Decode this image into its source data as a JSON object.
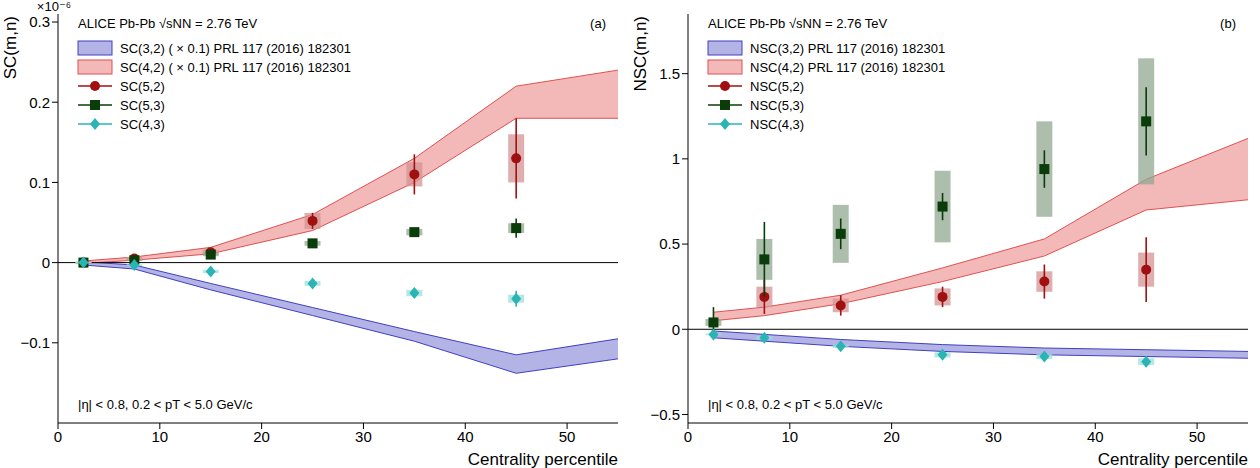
{
  "chart_data": [
    {
      "type": "scatter",
      "title": "ALICE Pb-Pb √sNN = 2.76 TeV",
      "panel_label": "(a)",
      "subtitle": "|η| < 0.8, 0.2 < pT < 5.0 GeV/c",
      "x_label": "Centrality percentile",
      "y_label": "SC(m,n)",
      "y_multiplier": "×10⁻⁶",
      "xlim": [
        0,
        55
      ],
      "xticks": [
        0,
        10,
        20,
        30,
        40,
        50
      ],
      "ylim": [
        -0.2,
        0.31
      ],
      "yticks": [
        -0.1,
        0,
        0.1,
        0.2,
        0.3
      ],
      "hlines": [
        0
      ],
      "grid": false,
      "legend": "top-left",
      "series": [
        {
          "name": "SC(3,2) ( × 0.1) PRL 117 (2016) 182301",
          "type": "band",
          "color": "#4040c0",
          "x": [
            2.5,
            7.5,
            15,
            25,
            35,
            45,
            55
          ],
          "low": [
            -0.003,
            -0.008,
            -0.034,
            -0.066,
            -0.098,
            -0.138,
            -0.12
          ],
          "high": [
            0.001,
            -0.003,
            -0.026,
            -0.056,
            -0.086,
            -0.115,
            -0.095
          ]
        },
        {
          "name": "SC(4,2) ( × 0.1) PRL 117 (2016) 182301",
          "type": "band",
          "color": "#e05050",
          "x": [
            2.5,
            7.5,
            15,
            25,
            35,
            45,
            55
          ],
          "low": [
            -0.001,
            0.003,
            0.011,
            0.04,
            0.1,
            0.18,
            0.18
          ],
          "high": [
            0.002,
            0.007,
            0.019,
            0.06,
            0.13,
            0.22,
            0.24
          ]
        },
        {
          "name": "SC(5,2)",
          "type": "scatter",
          "marker": "circle",
          "color": "#a01010",
          "x": [
            2.5,
            7.5,
            15,
            25,
            35,
            45
          ],
          "values": [
            0,
            0.005,
            0.013,
            0.052,
            0.11,
            0.13
          ],
          "stat_errors": [
            0.001,
            0.002,
            0.004,
            0.01,
            0.025,
            0.05
          ],
          "syst_errors": [
            0.001,
            0.002,
            0.003,
            0.01,
            0.015,
            0.03
          ]
        },
        {
          "name": "SC(5,3)",
          "type": "scatter",
          "marker": "square",
          "color": "#0a3d0a",
          "x": [
            2.5,
            7.5,
            15,
            25,
            35,
            45
          ],
          "values": [
            0,
            0.003,
            0.01,
            0.024,
            0.038,
            0.043
          ],
          "stat_errors": [
            0.001,
            0.002,
            0.003,
            0.004,
            0.005,
            0.012
          ],
          "syst_errors": [
            0.001,
            0.001,
            0.002,
            0.003,
            0.004,
            0.006
          ]
        },
        {
          "name": "SC(4,3)",
          "type": "scatter",
          "marker": "diamond",
          "color": "#2ab5b5",
          "x": [
            2.5,
            7.5,
            15,
            25,
            35,
            45
          ],
          "values": [
            0,
            -0.003,
            -0.011,
            -0.026,
            -0.038,
            -0.045
          ],
          "stat_errors": [
            0.001,
            0.002,
            0.003,
            0.004,
            0.006,
            0.01
          ],
          "syst_errors": [
            0.001,
            0.001,
            0.002,
            0.003,
            0.004,
            0.005
          ]
        }
      ]
    },
    {
      "type": "scatter",
      "title": "ALICE Pb-Pb √sNN = 2.76 TeV",
      "panel_label": "(b)",
      "subtitle": "|η| < 0.8, 0.2 < pT < 5.0 GeV/c",
      "x_label": "Centrality percentile",
      "y_label": "NSC(m,n)",
      "xlim": [
        0,
        55
      ],
      "xticks": [
        0,
        10,
        20,
        30,
        40,
        50
      ],
      "ylim": [
        -0.55,
        1.85
      ],
      "yticks": [
        -0.5,
        0,
        0.5,
        1,
        1.5
      ],
      "hlines": [
        0
      ],
      "grid": false,
      "legend": "top-left",
      "series": [
        {
          "name": "NSC(3,2) PRL 117 (2016) 182301",
          "type": "band",
          "color": "#4040c0",
          "x": [
            2.5,
            7.5,
            15,
            25,
            35,
            45,
            55
          ],
          "low": [
            -0.05,
            -0.07,
            -0.1,
            -0.13,
            -0.15,
            -0.16,
            -0.17
          ],
          "high": [
            -0.01,
            -0.03,
            -0.06,
            -0.09,
            -0.11,
            -0.12,
            -0.13
          ]
        },
        {
          "name": "NSC(4,2) PRL 117 (2016) 182301",
          "type": "band",
          "color": "#e05050",
          "x": [
            2.5,
            7.5,
            15,
            25,
            35,
            45,
            55
          ],
          "low": [
            0.05,
            0.08,
            0.15,
            0.28,
            0.43,
            0.7,
            0.76
          ],
          "high": [
            0.1,
            0.13,
            0.2,
            0.36,
            0.53,
            0.88,
            1.12
          ]
        },
        {
          "name": "NSC(5,2)",
          "type": "scatter",
          "marker": "circle",
          "color": "#a01010",
          "x": [
            7.5,
            15,
            25,
            35,
            45
          ],
          "values": [
            0.19,
            0.14,
            0.19,
            0.28,
            0.35
          ],
          "stat_errors": [
            0.1,
            0.06,
            0.06,
            0.1,
            0.19
          ],
          "syst_errors": [
            0.06,
            0.04,
            0.05,
            0.06,
            0.1
          ]
        },
        {
          "name": "NSC(5,3)",
          "type": "scatter",
          "marker": "square",
          "color": "#0a3d0a",
          "x": [
            2.5,
            7.5,
            15,
            25,
            35,
            45
          ],
          "values": [
            0.04,
            0.41,
            0.56,
            0.72,
            0.94,
            1.22
          ],
          "stat_errors": [
            0.09,
            0.22,
            0.09,
            0.08,
            0.11,
            0.2
          ],
          "syst_errors": [
            0.02,
            0.12,
            0.17,
            0.21,
            0.28,
            0.37
          ]
        },
        {
          "name": "NSC(4,3)",
          "type": "scatter",
          "marker": "diamond",
          "color": "#2ab5b5",
          "x": [
            2.5,
            7.5,
            15,
            25,
            35,
            45
          ],
          "values": [
            -0.03,
            -0.05,
            -0.1,
            -0.15,
            -0.16,
            -0.19
          ],
          "stat_errors": [
            0.01,
            0.01,
            0.015,
            0.02,
            0.02,
            0.03
          ],
          "syst_errors": [
            0.005,
            0.01,
            0.01,
            0.015,
            0.015,
            0.02
          ]
        }
      ]
    }
  ]
}
